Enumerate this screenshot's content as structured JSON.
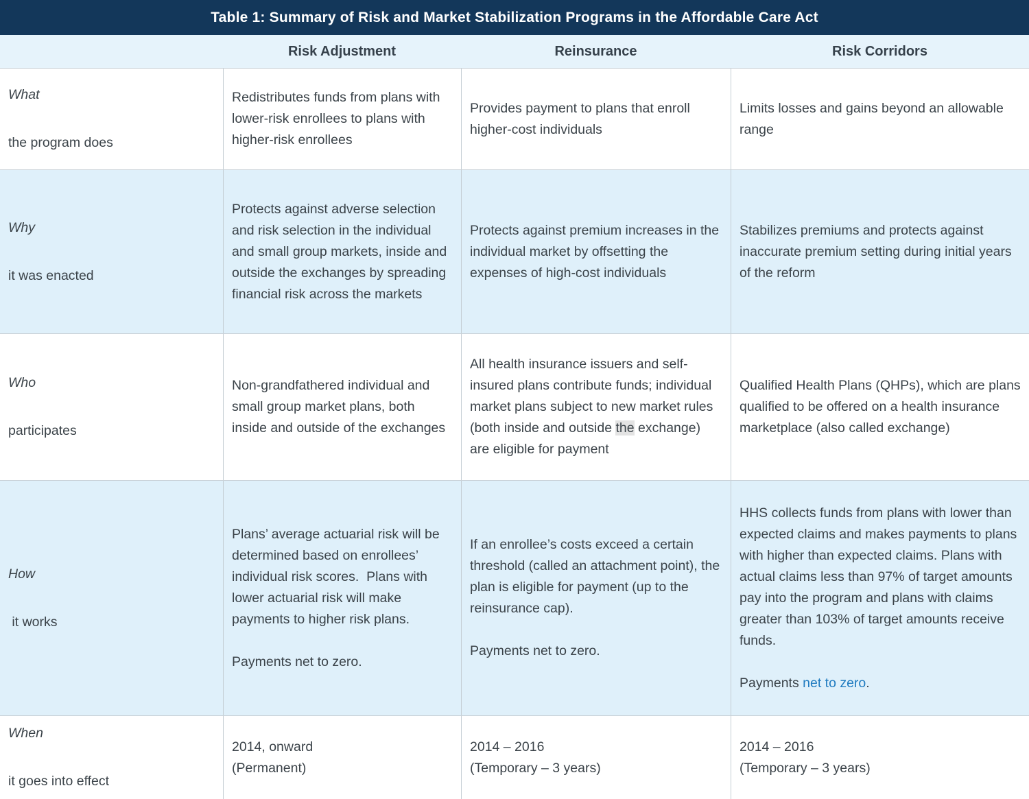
{
  "title": "Table 1: Summary of Risk and Market Stabilization Programs in the Affordable Care Act",
  "column_headers": {
    "risk_adjustment": "Risk Adjustment",
    "reinsurance": "Reinsurance",
    "risk_corridors": "Risk Corridors"
  },
  "rows": {
    "what": {
      "label_word": "What",
      "label_desc": "the program does",
      "risk_adjustment": "Redistributes funds from plans with lower-risk enrollees to plans with higher-risk enrollees",
      "reinsurance": "Provides payment to plans that enroll higher-cost individuals",
      "risk_corridors": "Limits losses and gains beyond an allowable range"
    },
    "why": {
      "label_word": "Why",
      "label_desc": "it was enacted",
      "risk_adjustment": "Protects against adverse selection and risk selection in the individual and small group markets, inside and outside the exchanges by spreading financial risk across the markets",
      "reinsurance": "Protects against premium increases in the individual market by offsetting the expenses of high-cost individuals",
      "risk_corridors": "Stabilizes premiums and protects against inaccurate premium setting during initial years of the reform"
    },
    "who": {
      "label_word": "Who",
      "label_desc": "participates",
      "risk_adjustment": "Non-grandfathered individual and small group market plans, both inside and outside of the exchanges",
      "reinsurance_pre": "All health insurance issuers and self-insured plans contribute funds; individual market plans subject to new market rules (both inside and outside ",
      "reinsurance_highlight": "the",
      "reinsurance_post": " exchange) are eligible for payment",
      "risk_corridors": "Qualified Health Plans (QHPs), which are plans qualified to be offered on a health insurance marketplace (also called exchange)"
    },
    "how": {
      "label_word": "How",
      "label_desc": " it works",
      "risk_adjustment_p1": "Plans’ average actuarial risk will be determined based on enrollees’ individual risk scores.  Plans with lower actuarial risk will make payments to higher risk plans.",
      "risk_adjustment_p2": "Payments net to zero.",
      "reinsurance_p1": "If an enrollee’s costs exceed a certain threshold (called an attachment point), the plan is eligible for payment (up to the reinsurance cap).",
      "reinsurance_p2": "Payments net to zero.",
      "risk_corridors_p1": "HHS collects funds from plans with lower than expected claims and makes payments to plans with higher than expected claims. Plans with actual claims less than 97% of target amounts pay into the program and plans with claims greater than 103% of target amounts receive funds.",
      "risk_corridors_p2_prefix": "Payments ",
      "risk_corridors_p2_link": "net to zero",
      "risk_corridors_p2_suffix": "."
    },
    "when": {
      "label_word": "When",
      "label_desc": "it goes into effect",
      "risk_adjustment_line1": "2014, onward",
      "risk_adjustment_line2": "(Permanent)",
      "reinsurance_line1": "2014 – 2016",
      "reinsurance_line2": "(Temporary – 3 years)",
      "risk_corridors_line1": "2014 – 2016",
      "risk_corridors_line2": "(Temporary – 3 years)"
    }
  },
  "colors": {
    "title_bar_bg": "#13375a",
    "title_text": "#ffffff",
    "header_row_bg": "#e6f3fb",
    "alternate_row_bg": "#dff0fa",
    "body_text": "#3b4349",
    "link_blue": "#1f7bc0",
    "highlight_gray": "#e3e3e3",
    "border_gray": "#c9d1d7"
  }
}
